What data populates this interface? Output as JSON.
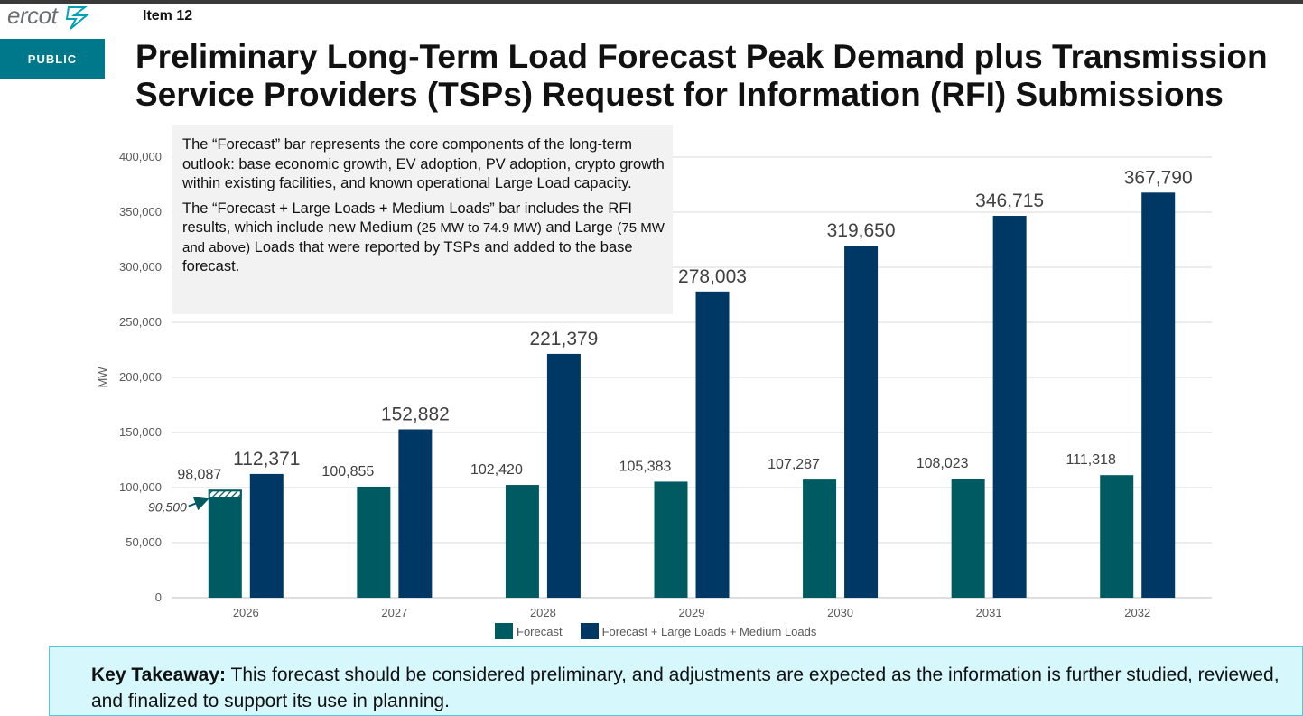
{
  "header": {
    "logo_text": "ercot",
    "item_label": "Item  12",
    "badge": "PUBLIC",
    "title": "Preliminary Long-Term Load Forecast Peak Demand plus Transmission Service Providers (TSPs) Request for Information (RFI) Submissions"
  },
  "note": {
    "p1": "The “Forecast” bar represents the core components of the long-term outlook: base economic growth, EV adoption, PV adoption, crypto growth within existing facilities, and known operational Large Load capacity.",
    "p2_a": "The “Forecast + Large Loads + Medium Loads” bar includes the RFI results, which include new Medium ",
    "p2_b": "(25 MW to 74.9 MW)",
    "p2_c": " and Large ",
    "p2_d": "(75 MW and above)",
    "p2_e": " Loads that were reported by TSPs and added to the base forecast."
  },
  "chart_data": {
    "type": "bar",
    "categories": [
      "2026",
      "2027",
      "2028",
      "2029",
      "2030",
      "2031",
      "2032"
    ],
    "series": [
      {
        "name": "Forecast",
        "color": "#005a62",
        "values": [
          98087,
          100855,
          102420,
          105383,
          107287,
          108023,
          111318
        ],
        "labels": [
          "98,087",
          "100,855",
          "102,420",
          "105,383",
          "107,287",
          "108,023",
          "111,318"
        ]
      },
      {
        "name": "Forecast + Large Loads + Medium Loads",
        "color": "#003865",
        "values": [
          112371,
          152882,
          221379,
          278003,
          319650,
          346715,
          367790
        ],
        "labels": [
          "112,371",
          "152,882",
          "221,379",
          "278,003",
          "319,650",
          "346,715",
          "367,790"
        ]
      }
    ],
    "annotation": {
      "category": "2026",
      "value": 90500,
      "label": "90,500"
    },
    "ylabel": "MW",
    "ylim": [
      0,
      400000
    ],
    "yticks": [
      0,
      50000,
      100000,
      150000,
      200000,
      250000,
      300000,
      350000,
      400000
    ],
    "ytick_labels": [
      "0",
      "50,000",
      "100,000",
      "150,000",
      "200,000",
      "250,000",
      "300,000",
      "350,000",
      "400,000"
    ],
    "gridlines": true,
    "legend_position": "bottom"
  },
  "takeaway": {
    "label": "Key Takeaway:",
    "text": " This forecast should be considered preliminary, and adjustments are expected as the information is further studied, reviewed, and finalized to support its use in planning."
  }
}
